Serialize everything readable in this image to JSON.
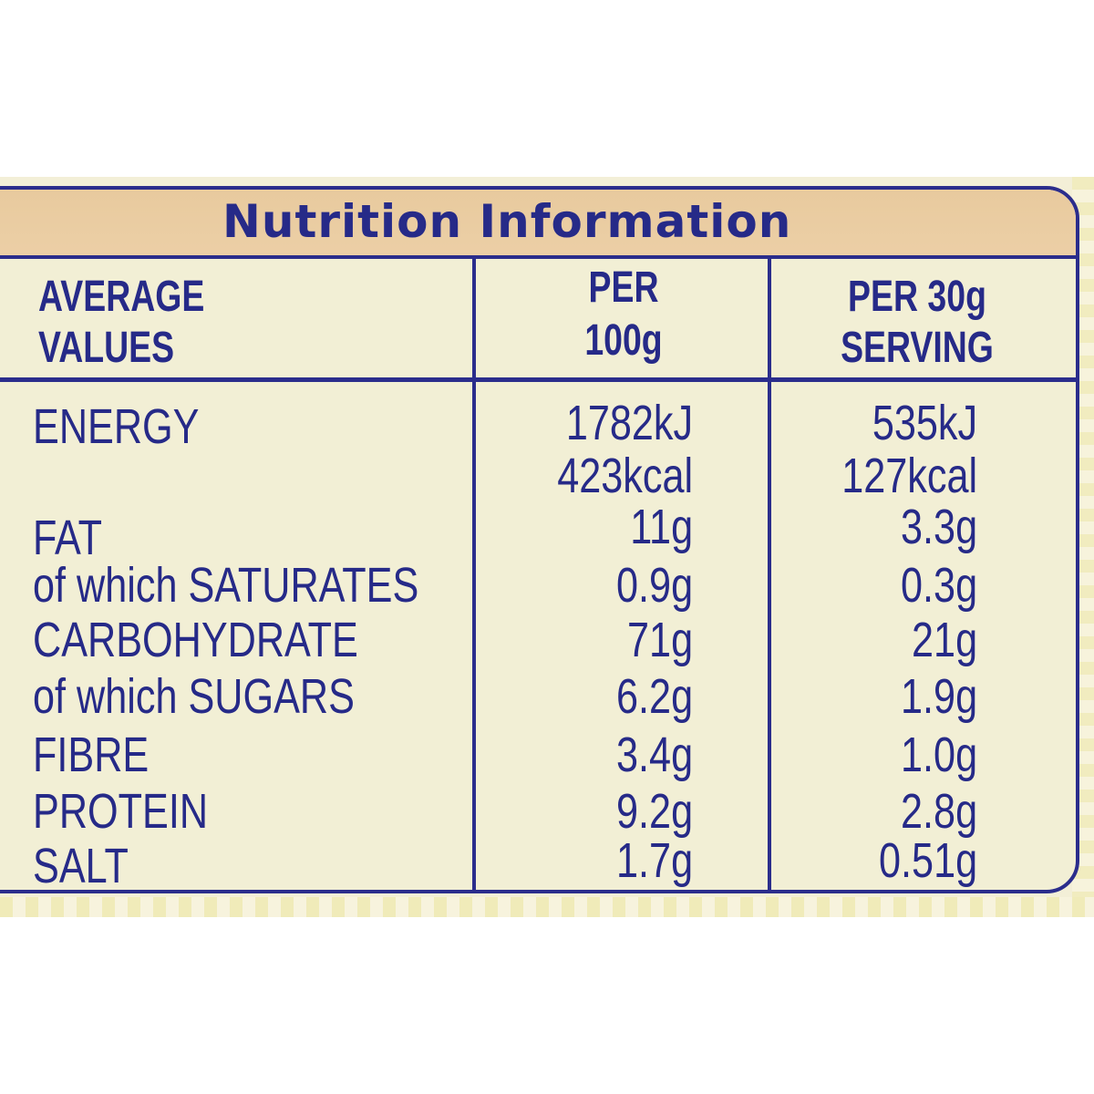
{
  "label": {
    "title": "Nutrition Information",
    "headers": {
      "col1_line1": "AVERAGE",
      "col1_line2": "VALUES",
      "col2_line1": "PER",
      "col2_line2": "100g",
      "col3_line1": "PER 30g",
      "col3_line2": "SERVING"
    },
    "rows": [
      {
        "name": "ENERGY",
        "per100": "1782kJ",
        "per30": "535kJ"
      },
      {
        "name": "",
        "per100": "423kcal",
        "per30": "127kcal"
      },
      {
        "name": "FAT",
        "per100": "11g",
        "per30": "3.3g"
      },
      {
        "name": "of which SATURATES",
        "per100": "0.9g",
        "per30": "0.3g"
      },
      {
        "name": "CARBOHYDRATE",
        "per100": "71g",
        "per30": "21g"
      },
      {
        "name": "of which SUGARS",
        "per100": "6.2g",
        "per30": "1.9g"
      },
      {
        "name": "FIBRE",
        "per100": "3.4g",
        "per30": "1.0g"
      },
      {
        "name": "PROTEIN",
        "per100": "9.2g",
        "per30": "2.8g"
      },
      {
        "name": "SALT",
        "per100": "1.7g",
        "per30": "0.51g"
      }
    ],
    "colors": {
      "ink": "#262a88",
      "panel": "#f2efd5",
      "title_bar": "#e8ca9e"
    }
  }
}
